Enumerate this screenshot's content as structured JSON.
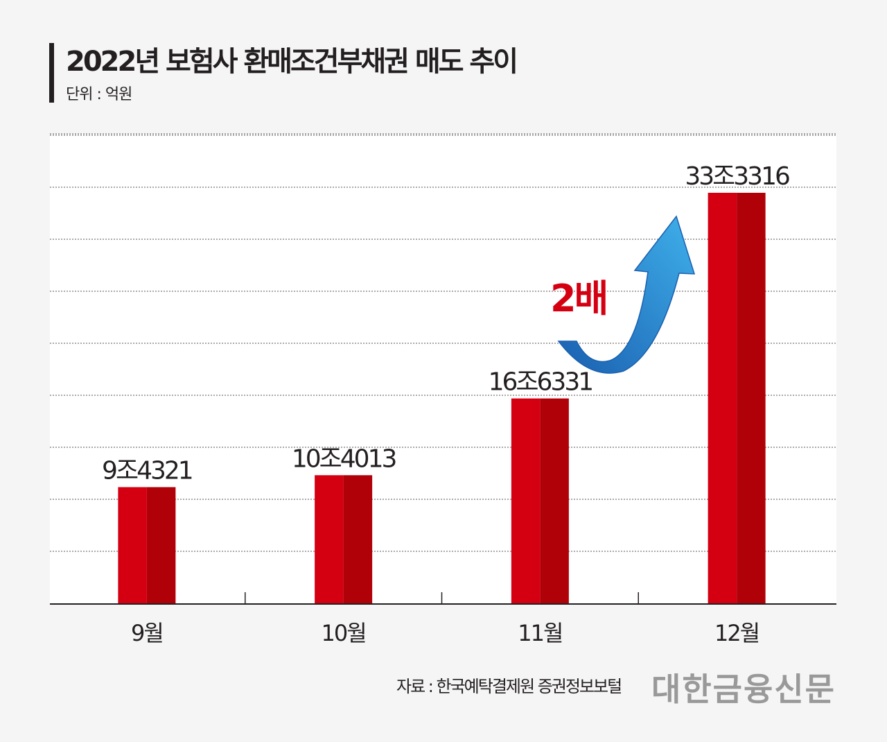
{
  "chart_data": {
    "type": "bar",
    "title": "2022년 보험사 환매조건부채권 매도 추이",
    "subtitle": "단위 : 억원",
    "categories": [
      "9월",
      "10월",
      "11월",
      "12월"
    ],
    "values": [
      94321,
      104013,
      166331,
      333316
    ],
    "data_labels": [
      "9조4321",
      "10조4013",
      "16조6331",
      "33조3316"
    ],
    "xlabel": "",
    "ylabel": "",
    "grid": true,
    "annotation": "2배",
    "colors": {
      "bar_light": "#d40012",
      "bar_dark": "#b00008",
      "arrow": "#2f8fd8"
    }
  },
  "footer": {
    "source": "자료 : 한국예탁결제원 증권정보보털",
    "logo": "대한금융신문"
  }
}
